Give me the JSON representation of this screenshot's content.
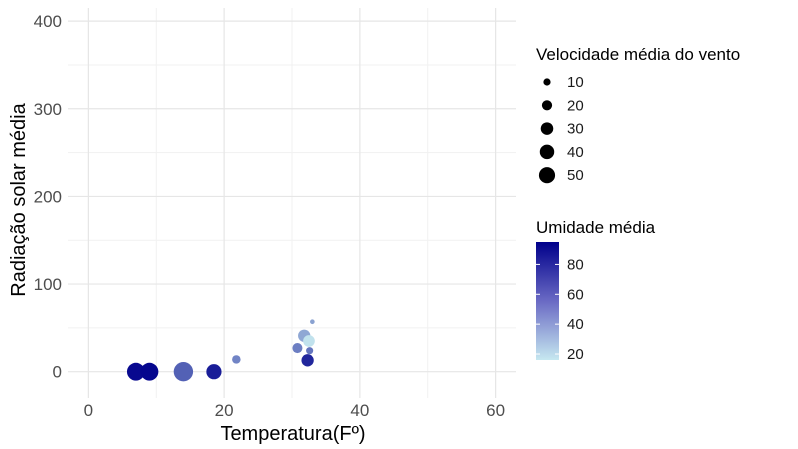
{
  "chart_data": {
    "type": "scatter",
    "title": "",
    "xlabel": "Temperatura(Fº)",
    "ylabel": "Radiação solar média",
    "xlim": [
      -3,
      63
    ],
    "ylim": [
      -30,
      415
    ],
    "x_ticks": [
      0,
      20,
      40,
      60
    ],
    "y_ticks": [
      0,
      100,
      200,
      300,
      400
    ],
    "grid": true,
    "legend_position": "right",
    "size_legend": {
      "title": "Velocidade média do vento",
      "values": [
        10,
        20,
        30,
        40,
        50
      ]
    },
    "color_legend": {
      "title": "Umidade média",
      "ticks": [
        20,
        40,
        60,
        80
      ],
      "range": [
        16,
        95
      ],
      "low_color": "#c6e8f0",
      "high_color": "#00008b"
    },
    "points": [
      {
        "x": 7.0,
        "y": 0,
        "size": 44,
        "color": 92
      },
      {
        "x": 9.0,
        "y": 0,
        "size": 44,
        "color": 93
      },
      {
        "x": 14.0,
        "y": 0,
        "size": 52,
        "color": 62
      },
      {
        "x": 18.5,
        "y": 0,
        "size": 32,
        "color": 85
      },
      {
        "x": 21.8,
        "y": 14,
        "size": 10,
        "color": 50
      },
      {
        "x": 30.8,
        "y": 27,
        "size": 14,
        "color": 52
      },
      {
        "x": 31.8,
        "y": 41,
        "size": 21,
        "color": 38
      },
      {
        "x": 32.5,
        "y": 35,
        "size": 19,
        "color": 18
      },
      {
        "x": 32.3,
        "y": 13,
        "size": 21,
        "color": 82
      },
      {
        "x": 32.6,
        "y": 24,
        "size": 7,
        "color": 55
      },
      {
        "x": 33.0,
        "y": 57,
        "size": 3,
        "color": 40
      }
    ]
  }
}
